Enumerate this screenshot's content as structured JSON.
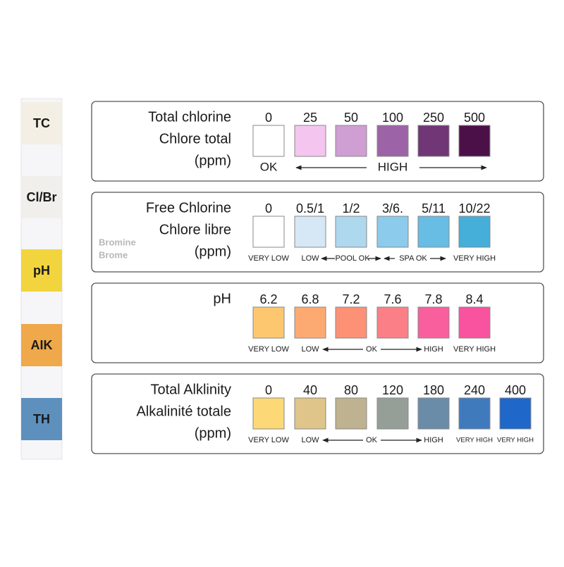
{
  "strip": {
    "labels": [
      "TC",
      "Cl/Br",
      "pH",
      "AIK",
      "TH"
    ],
    "colors": [
      "#f4efe4",
      "#f1efec",
      "#f2d43e",
      "#efa84a",
      "#5e90be"
    ]
  },
  "panels": [
    {
      "title": [
        "Total chlorine",
        "Chlore total",
        "(ppm)"
      ],
      "levels": [
        "0",
        "25",
        "50",
        "100",
        "250",
        "500"
      ],
      "colors": [
        "#ffffff",
        "#f4c6ef",
        "#cf9ed3",
        "#9c63a6",
        "#703676",
        "#4c1048"
      ],
      "scale": [
        "OK",
        "HIGH"
      ]
    },
    {
      "title": [
        "Free Chlorine",
        "Chlore libre",
        "(ppm)"
      ],
      "subtitle": [
        "Bromine",
        "Brome"
      ],
      "levels": [
        "0",
        "0.5/1",
        "1/2",
        "3/6.",
        "5/11",
        "10/22"
      ],
      "colors": [
        "#ffffff",
        "#d6e8f6",
        "#aed8ee",
        "#8ccbec",
        "#67bde3",
        "#45aed9"
      ],
      "scale": [
        "VERY LOW",
        "LOW",
        "POOL OK",
        "SPA OK",
        "VERY HIGH"
      ]
    },
    {
      "title": [
        "pH"
      ],
      "levels": [
        "6.2",
        "6.8",
        "7.2",
        "7.6",
        "7.8",
        "8.4"
      ],
      "colors": [
        "#fdc770",
        "#fdaa72",
        "#fd9176",
        "#fb7f86",
        "#fa5f9d",
        "#f9529f"
      ],
      "scale": [
        "VERY LOW",
        "LOW",
        "OK",
        "HIGH",
        "VERY HIGH"
      ]
    },
    {
      "title": [
        "Total Alklinity",
        "Alkalinité totale",
        "(ppm)"
      ],
      "levels": [
        "0",
        "40",
        "80",
        "120",
        "180",
        "240",
        "400"
      ],
      "colors": [
        "#fdd877",
        "#dfc589",
        "#bfb291",
        "#959f98",
        "#6a8ca9",
        "#3f7abd",
        "#1f67c8"
      ],
      "scale": [
        "VERY LOW",
        "LOW",
        "OK",
        "HIGH",
        "VERY HIGH",
        "VERY HIGH"
      ]
    }
  ]
}
